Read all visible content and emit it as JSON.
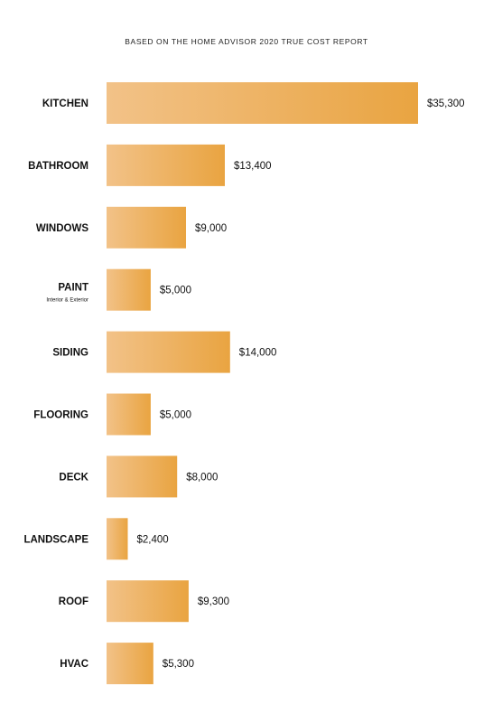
{
  "chart_data": {
    "type": "bar",
    "orientation": "horizontal",
    "title": "",
    "subtitle": "BASED ON THE HOME ADVISOR 2020 TRUE COST REPORT",
    "categories": [
      "KITCHEN",
      "BATHROOM",
      "WINDOWS",
      "PAINT",
      "SIDING",
      "FLOORING",
      "DECK",
      "LANDSCAPE",
      "ROOF",
      "HVAC"
    ],
    "category_sublabels": {
      "PAINT": "Interior & Exterior"
    },
    "values": [
      35300,
      13400,
      9000,
      5000,
      14000,
      5000,
      8000,
      2400,
      9300,
      5300
    ],
    "value_labels": [
      "$35,300",
      "$13,400",
      "$9,000",
      "$5,000",
      "$14,000",
      "$5,000",
      "$8,000",
      "$2,400",
      "$9,300",
      "$5,300"
    ],
    "xlim": [
      0,
      35300
    ],
    "grid": false,
    "legend": "none",
    "colors": {
      "bar_start": "#F2C288",
      "bar_end": "#E9A441"
    }
  }
}
